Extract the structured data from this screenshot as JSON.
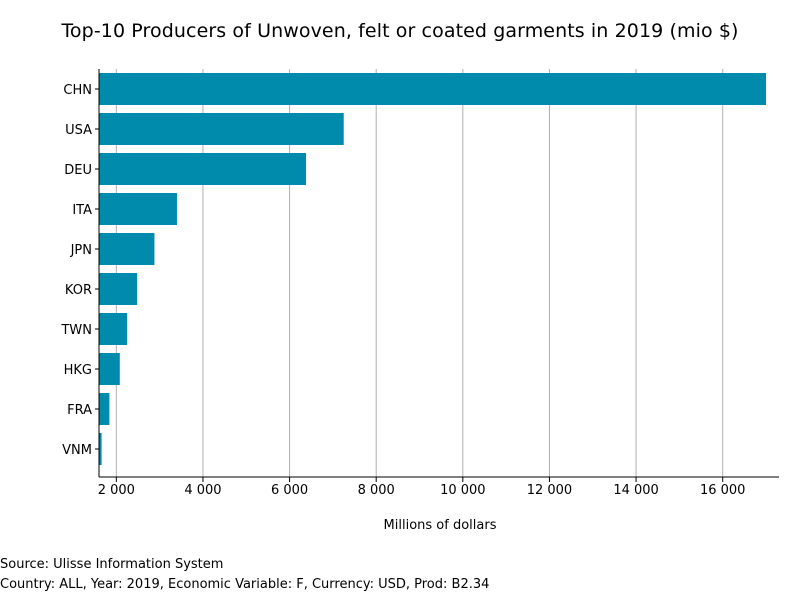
{
  "chart_data": {
    "type": "bar",
    "orientation": "horizontal",
    "title": "Top-10 Producers of Unwoven, felt or coated garments in 2019 (mio $)",
    "xlabel": "Millions of dollars",
    "ylabel": "",
    "categories": [
      "CHN",
      "USA",
      "DEU",
      "ITA",
      "JPN",
      "KOR",
      "TWN",
      "HKG",
      "FRA",
      "VNM"
    ],
    "values": [
      17000,
      7250,
      6380,
      3400,
      2880,
      2480,
      2250,
      2080,
      1840,
      1660
    ],
    "xlim": [
      1600,
      17300
    ],
    "xticks": [
      2000,
      4000,
      6000,
      8000,
      10000,
      12000,
      14000,
      16000
    ],
    "xtick_labels": [
      "2 000",
      "4 000",
      "6 000",
      "8 000",
      "10 000",
      "12 000",
      "14 000",
      "16 000"
    ],
    "grid": "vertical",
    "bar_color": "#008bad",
    "grid_color": "#b0b0b0"
  },
  "footer": {
    "source": "Source: Ulisse Information System",
    "details": "Country: ALL, Year: 2019, Economic Variable: F, Currency: USD, Prod: B2.34"
  }
}
